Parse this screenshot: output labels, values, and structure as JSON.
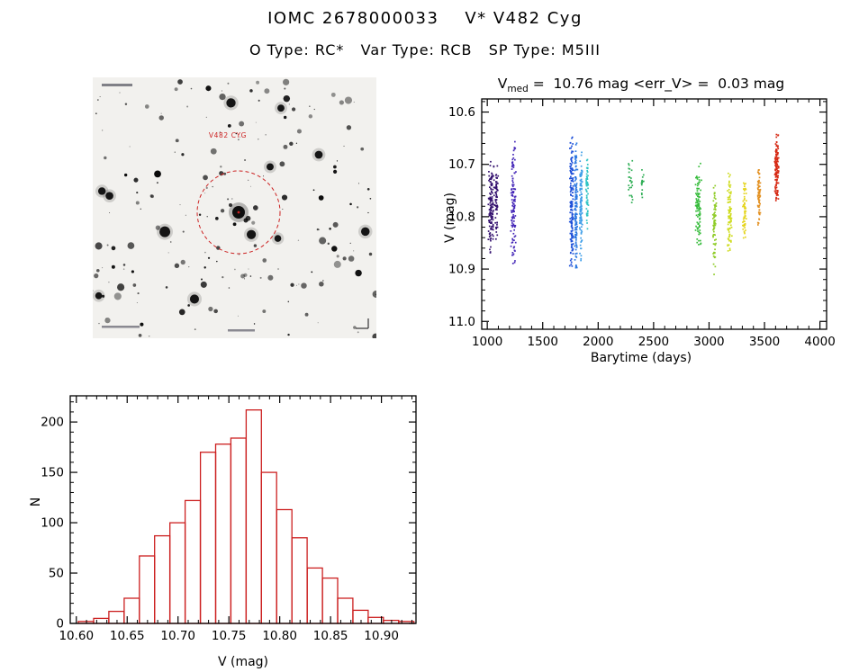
{
  "page": {
    "title": "IOMC 2678000033    V* V482 Cyg",
    "subtitle": "O Type: RC*   Var Type: RCB   SP Type: M5III"
  },
  "finder": {
    "star_label": "V482 CYG",
    "annotation_color": "#cc2222"
  },
  "chart_data": [
    {
      "type": "scatter",
      "title": "V_med = 10.76 mag  <err_V> = 0.03 mag",
      "title_parts": {
        "v": "V",
        "sub": "med",
        "rest": " =  10.76 mag <err_V> =  0.03 mag"
      },
      "xlabel": "Barytime (days)",
      "ylabel": "V (mag)",
      "xlim": [
        950,
        4060
      ],
      "ylim": [
        10.575,
        11.015
      ],
      "y_inverted": true,
      "xticks": [
        1000,
        1500,
        2000,
        2500,
        3000,
        3500,
        4000
      ],
      "xtick_labels": [
        "1000",
        "1500",
        "2000",
        "2500",
        "3000",
        "3500",
        "4000"
      ],
      "yticks": [
        10.6,
        10.7,
        10.8,
        10.9,
        11.0
      ],
      "ytick_labels": [
        "10.6",
        "10.7",
        "10.8",
        "10.9",
        "11.0"
      ],
      "xminor": 100,
      "yminor": 0.02,
      "series": [
        {
          "t": 1035,
          "halfwidth": 30,
          "vmin": 10.68,
          "vmax": 10.88,
          "n": 130,
          "color": "#33106e"
        },
        {
          "t": 1085,
          "halfwidth": 15,
          "vmin": 10.7,
          "vmax": 10.86,
          "n": 60,
          "color": "#33106e"
        },
        {
          "t": 1235,
          "halfwidth": 25,
          "vmin": 10.64,
          "vmax": 10.91,
          "n": 120,
          "color": "#4629b8"
        },
        {
          "t": 1760,
          "halfwidth": 18,
          "vmin": 10.63,
          "vmax": 10.92,
          "n": 150,
          "color": "#1e50d8"
        },
        {
          "t": 1800,
          "halfwidth": 15,
          "vmin": 10.64,
          "vmax": 10.92,
          "n": 130,
          "color": "#2a77e0"
        },
        {
          "t": 1845,
          "halfwidth": 15,
          "vmin": 10.66,
          "vmax": 10.9,
          "n": 110,
          "color": "#3f9ee8"
        },
        {
          "t": 1900,
          "halfwidth": 12,
          "vmin": 10.67,
          "vmax": 10.83,
          "n": 60,
          "color": "#2fc4c4"
        },
        {
          "t": 2290,
          "halfwidth": 30,
          "vmin": 10.67,
          "vmax": 10.79,
          "n": 25,
          "color": "#2fae55"
        },
        {
          "t": 2400,
          "halfwidth": 15,
          "vmin": 10.7,
          "vmax": 10.77,
          "n": 15,
          "color": "#2fae55"
        },
        {
          "t": 2905,
          "halfwidth": 30,
          "vmin": 10.69,
          "vmax": 10.87,
          "n": 100,
          "color": "#37bc3c"
        },
        {
          "t": 3050,
          "halfwidth": 18,
          "vmin": 10.71,
          "vmax": 10.92,
          "n": 70,
          "color": "#8fcc28"
        },
        {
          "t": 3185,
          "halfwidth": 22,
          "vmin": 10.71,
          "vmax": 10.88,
          "n": 85,
          "color": "#cfdc20"
        },
        {
          "t": 3320,
          "halfwidth": 18,
          "vmin": 10.72,
          "vmax": 10.86,
          "n": 70,
          "color": "#e5d51e"
        },
        {
          "t": 3450,
          "halfwidth": 15,
          "vmin": 10.69,
          "vmax": 10.83,
          "n": 65,
          "color": "#e39020"
        },
        {
          "t": 3610,
          "halfwidth": 20,
          "vmin": 10.63,
          "vmax": 10.78,
          "n": 130,
          "color": "#d62a14"
        }
      ]
    },
    {
      "type": "bar",
      "title": "",
      "xlabel": "V (mag)",
      "ylabel": "N",
      "bin_start": 10.602,
      "bin_width": 0.015,
      "counts": [
        2,
        5,
        12,
        25,
        67,
        87,
        100,
        122,
        170,
        178,
        184,
        212,
        150,
        113,
        85,
        55,
        45,
        25,
        13,
        6,
        3,
        2
      ],
      "xlim": [
        10.594,
        10.934
      ],
      "ylim": [
        0,
        226
      ],
      "xticks": [
        10.6,
        10.65,
        10.7,
        10.75,
        10.8,
        10.85,
        10.9
      ],
      "xtick_labels": [
        "10.60",
        "10.65",
        "10.70",
        "10.75",
        "10.80",
        "10.85",
        "10.90"
      ],
      "yticks": [
        0,
        50,
        100,
        150,
        200
      ],
      "ytick_labels": [
        "0",
        "50",
        "100",
        "150",
        "200"
      ],
      "xminor": 0.01,
      "yminor": 10,
      "color": "#cc2020"
    }
  ]
}
